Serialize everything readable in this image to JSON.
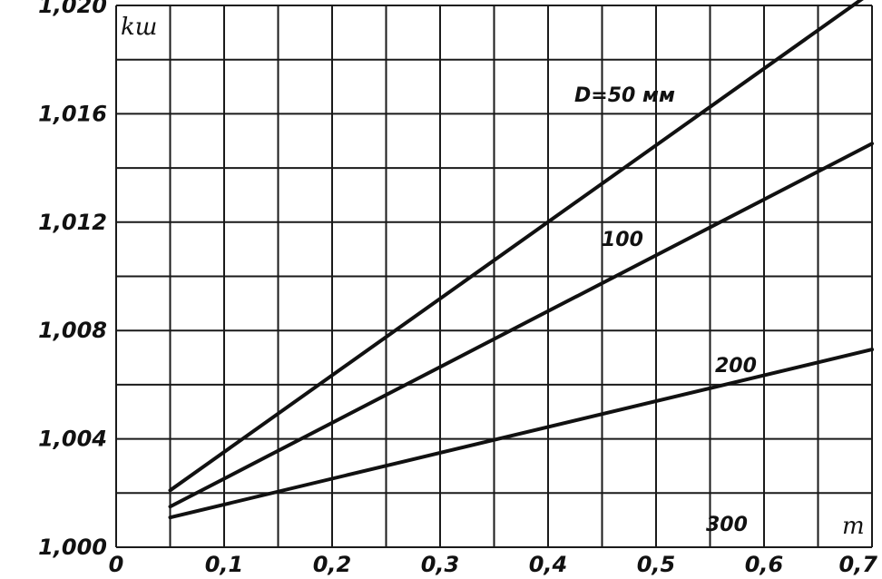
{
  "chart_data": {
    "type": "line",
    "ylabel": "kш",
    "xlabel": "m",
    "xlim": [
      0,
      0.7
    ],
    "ylim": [
      1.0,
      1.02
    ],
    "grid": true,
    "x_ticks": [
      0,
      0.1,
      0.2,
      0.3,
      0.4,
      0.5,
      0.6,
      0.7
    ],
    "x_tick_labels": [
      "0",
      "0,1",
      "0,2",
      "0,3",
      "0,4",
      "0,5",
      "0,6",
      "0,7"
    ],
    "y_ticks": [
      1.0,
      1.004,
      1.008,
      1.012,
      1.016,
      1.02
    ],
    "y_tick_labels": [
      "1,000",
      "1,004",
      "1,008",
      "1,012",
      "1,016",
      "1,020"
    ],
    "series": [
      {
        "name": "D=50 мм",
        "x": [
          0.05,
          0.7
        ],
        "values": [
          1.0021,
          1.0205
        ]
      },
      {
        "name": "100",
        "x": [
          0.05,
          0.7
        ],
        "values": [
          1.0015,
          1.0149
        ]
      },
      {
        "name": "200",
        "x": [
          0.05,
          0.7
        ],
        "values": [
          1.0011,
          1.0073
        ]
      },
      {
        "name": "300",
        "x": [],
        "values": []
      }
    ],
    "series_labels": [
      "D=50 мм",
      "100",
      "200",
      "300"
    ]
  }
}
